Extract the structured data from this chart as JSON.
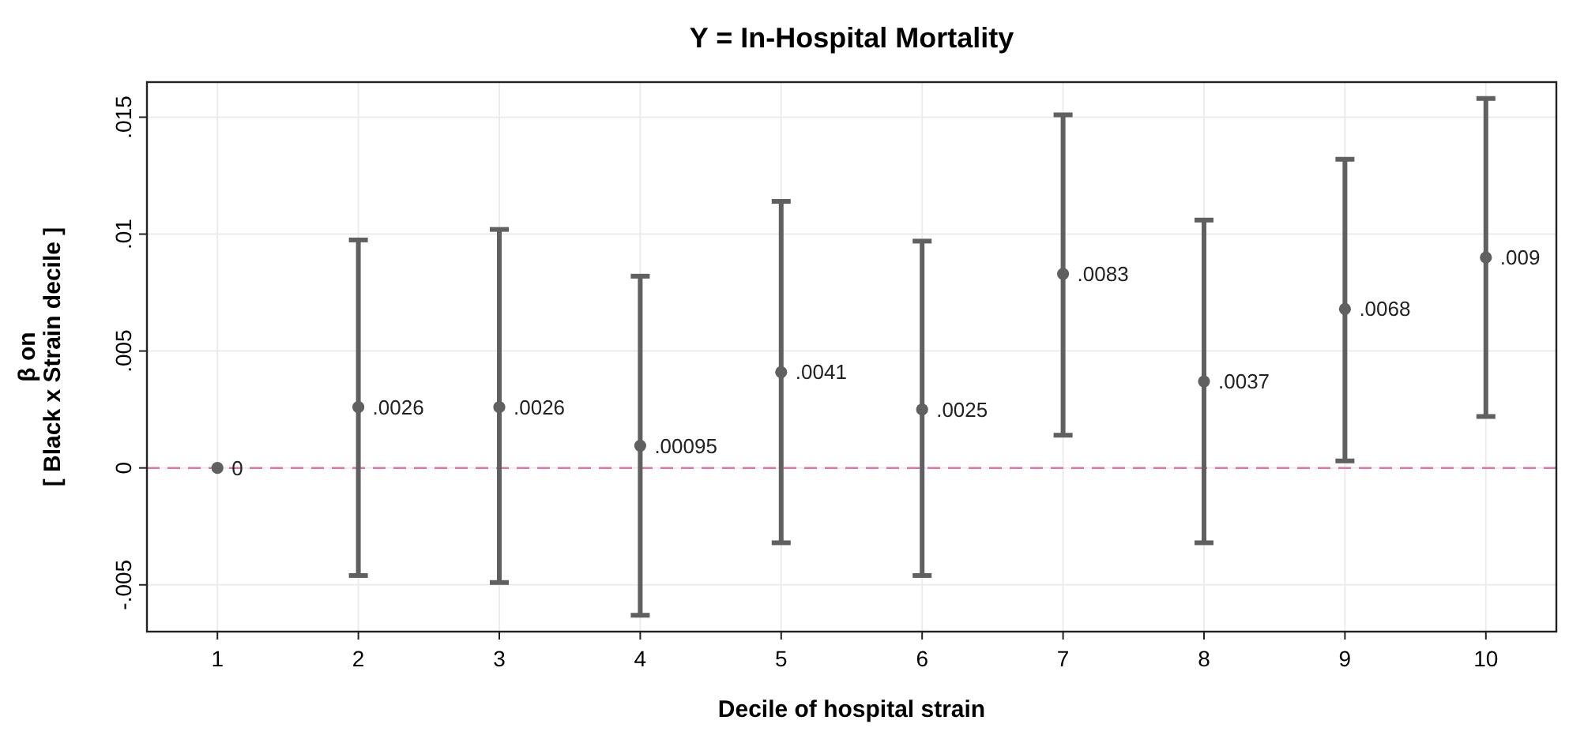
{
  "chart_data": {
    "type": "scatter",
    "title": "Y = In-Hospital Mortality",
    "xlabel": "Decile of hospital strain",
    "ylabel": "β on\n[ Black x Strain decile ]",
    "x": [
      1,
      2,
      3,
      4,
      5,
      6,
      7,
      8,
      9,
      10
    ],
    "series": [
      {
        "color": "#606060",
        "values": [
          0,
          0.0026,
          0.0026,
          0.00095,
          0.0041,
          0.0025,
          0.0083,
          0.0037,
          0.0068,
          0.009
        ],
        "errors": [
          null,
          [
            -0.0046,
            0.00975
          ],
          [
            -0.0049,
            0.0102
          ],
          [
            -0.0063,
            0.0082
          ],
          [
            -0.0032,
            0.0114
          ],
          [
            -0.0046,
            0.0097
          ],
          [
            0.0014,
            0.0151
          ],
          [
            -0.0032,
            0.0106
          ],
          [
            0.0003,
            0.0132
          ],
          [
            0.0022,
            0.0158
          ]
        ],
        "value_labels": [
          "0",
          ".0026",
          ".0026",
          ".00095",
          ".0041",
          ".0025",
          ".0083",
          ".0037",
          ".0068",
          ".009"
        ]
      }
    ],
    "xlim": [
      0.5,
      10.5
    ],
    "xticks": [
      1,
      2,
      3,
      4,
      5,
      6,
      7,
      8,
      9,
      10
    ],
    "ylim": [
      -0.007,
      0.0165
    ],
    "yticks": [
      {
        "value": -0.005,
        "label": "-.005"
      },
      {
        "value": 0,
        "label": "0"
      },
      {
        "value": 0.005,
        "label": ".005"
      },
      {
        "value": 0.01,
        "label": ".01"
      },
      {
        "value": 0.015,
        "label": ".015"
      }
    ],
    "ref_lines": [
      {
        "axis": "y",
        "value": 0,
        "color": "#d977a8",
        "line_style": "dashed"
      }
    ],
    "grid": true,
    "marker": "circle"
  }
}
